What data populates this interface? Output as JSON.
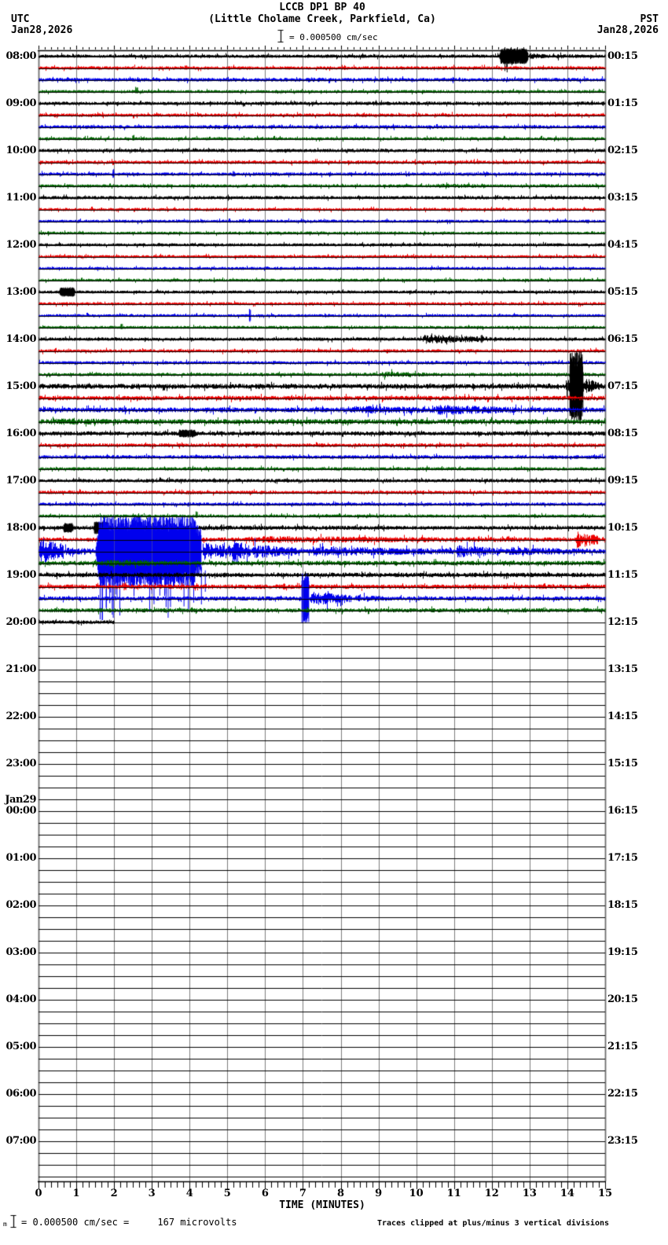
{
  "header": {
    "title": "LCCB DP1 BP 40",
    "subtitle": "(Little Cholame Creek, Parkfield, Ca)",
    "left_timezone": "UTC",
    "left_date": "Jan28,2026",
    "right_timezone": "PST",
    "right_date": "Jan28,2026",
    "scale_label": "= 0.000500 cm/sec"
  },
  "footer": {
    "prefix": "m",
    "scale_note": "= 0.000500 cm/sec =     167 microvolts",
    "clip_note": "Traces clipped at plus/minus 3 vertical divisions"
  },
  "axis": {
    "title": "TIME (MINUTES)",
    "tick_labels": [
      "0",
      "1",
      "2",
      "3",
      "4",
      "5",
      "6",
      "7",
      "8",
      "9",
      "10",
      "11",
      "12",
      "13",
      "14",
      "15"
    ]
  },
  "chart_data": {
    "type": "line",
    "subtype": "seismic heliplot / webicorder",
    "station": "LCCB DP1 BP 40",
    "location": "Little Cholame Creek, Parkfield, Ca",
    "date_utc": "Jan28,2026",
    "minutes_per_line": 15,
    "traces_per_hour_row": 4,
    "trace_colors": [
      "#000000",
      "#ee0000",
      "#0000ee",
      "#006600"
    ],
    "grid_color": "#7d7d7d",
    "amplitude_scale": "1 division = 0.000500 cm/sec = 167 microvolts",
    "clip_limit": "plus/minus 3 vertical divisions",
    "x_range_minutes": [
      0,
      15
    ],
    "minor_tick_seconds": 10,
    "data_ends_at_utc": "~20:02",
    "notable_events": [
      {
        "row_utc": "08:00",
        "trace": "black 08:00-08:15",
        "at_min": 12.2,
        "desc": "clipped black burst with down-spike and short coda"
      },
      {
        "row_utc": "10:00",
        "trace": "blue",
        "at_min": 2.0,
        "desc": "small spike"
      },
      {
        "row_utc": "13:00",
        "trace": "black",
        "at_min": 0.7,
        "desc": "small dense burst"
      },
      {
        "row_utc": "13:00",
        "trace": "blue",
        "at_min": 5.6,
        "desc": "sharp two-sided spike"
      },
      {
        "row_utc": "14:00",
        "trace": "black",
        "at_min": 10.2,
        "desc": "moderate burst decaying to min 12"
      },
      {
        "row_utc": "15:00",
        "trace": "black 15:00-15:15",
        "at_min": 14.1,
        "desc": "large event clipped at ±3 divisions, bleeds across adjacent traces, coda to end"
      },
      {
        "row_utc": "15:00",
        "trace": "blue",
        "at_min": 10.5,
        "desc": "elevated noise band through second half of row"
      },
      {
        "row_utc": "18:00",
        "trace": "blue",
        "at_min": 1.5,
        "desc": "very large clipped earthquake; precursor burst at min 0, clipped mass min 1.5-4.3 with deep tails, long elevated coda across rest of row and 19:00 row"
      },
      {
        "row_utc": "18:00",
        "trace": "red",
        "at_min": 14.3,
        "desc": "red burst near end of row, elevated band from min 5 on"
      },
      {
        "row_utc": "19:00",
        "trace": "blue",
        "at_min": 7.0,
        "desc": "tall narrow spike with short decaying coda"
      },
      {
        "row_utc": "20:00",
        "trace": "black",
        "at_min": 2.0,
        "desc": "recording stops; all later traces flat"
      }
    ],
    "rows": [
      {
        "utc": "08:00",
        "pst": "00:15",
        "traces": [
          {
            "base": 2.2,
            "segs": [
              [
                12.2,
                12.95,
                10,
                1
              ],
              [
                12.95,
                13.6,
                4
              ],
              [
                13.6,
                15,
                3
              ]
            ],
            "spikes": [
              [
                12.38,
                0,
                24
              ],
              [
                12.52,
                0,
                12
              ]
            ]
          },
          {
            "base": 2.2,
            "spikes": [
              [
                3.9,
                4,
                0
              ],
              [
                8.1,
                4,
                0
              ]
            ]
          },
          {
            "base": 2.4,
            "segs": [
              [
                7.0,
                8.2,
                3.2
              ]
            ]
          },
          {
            "base": 2.0,
            "spikes": [
              [
                2.6,
                6,
                0
              ]
            ]
          }
        ]
      },
      {
        "utc": "09:00",
        "pst": "01:15",
        "traces": [
          {
            "base": 2.3
          },
          {
            "base": 2.2
          },
          {
            "base": 2.3,
            "segs": [
              [
                4.4,
                5.4,
                3.4
              ]
            ]
          },
          {
            "base": 2.0,
            "spikes": [
              [
                2.5,
                5,
                0
              ]
            ]
          }
        ]
      },
      {
        "utc": "10:00",
        "pst": "02:15",
        "traces": [
          {
            "base": 2.2
          },
          {
            "base": 2.3
          },
          {
            "base": 2.2,
            "spikes": [
              [
                2.0,
                7,
                5
              ],
              [
                5.15,
                4,
                3
              ]
            ]
          },
          {
            "base": 2.0,
            "segs": [
              [
                10.4,
                12.6,
                3
              ]
            ]
          }
        ]
      },
      {
        "utc": "11:00",
        "pst": "03:15",
        "traces": [
          {
            "base": 2.2
          },
          {
            "base": 2.0
          },
          {
            "base": 2.0
          },
          {
            "base": 1.9
          }
        ]
      },
      {
        "utc": "12:00",
        "pst": "04:15",
        "traces": [
          {
            "base": 2.0
          },
          {
            "base": 2.0
          },
          {
            "base": 1.9
          },
          {
            "base": 1.9
          }
        ]
      },
      {
        "utc": "13:00",
        "pst": "05:15",
        "traces": [
          {
            "base": 2.0,
            "segs": [
              [
                0.55,
                0.95,
                6,
                1
              ]
            ]
          },
          {
            "base": 2.0
          },
          {
            "base": 1.9,
            "spikes": [
              [
                5.62,
                9,
                9
              ]
            ]
          },
          {
            "base": 1.9,
            "spikes": [
              [
                2.2,
                6,
                0
              ]
            ]
          }
        ]
      },
      {
        "utc": "14:00",
        "pst": "06:15",
        "traces": [
          {
            "base": 2.2,
            "segs": [
              [
                10.1,
                11.9,
                6
              ],
              [
                11.9,
                12.5,
                3
              ]
            ],
            "spikes": [
              [
                11.75,
                6,
                5
              ]
            ]
          },
          {
            "base": 2.2
          },
          {
            "base": 2.2
          },
          {
            "base": 2.2,
            "segs": [
              [
                9.0,
                10.6,
                4
              ]
            ]
          }
        ]
      },
      {
        "utc": "15:00",
        "pst": "07:15",
        "traces": [
          {
            "base": 3.2,
            "segs": [
              [
                13.95,
                14.05,
                12
              ],
              [
                14.05,
                14.4,
                45,
                1
              ],
              [
                14.4,
                14.8,
                11
              ],
              [
                14.8,
                15,
                6
              ]
            ]
          },
          {
            "base": 2.9
          },
          {
            "base": 3.2,
            "segs": [
              [
                8,
                13.2,
                5
              ],
              [
                10.4,
                12.7,
                6.5
              ]
            ]
          },
          {
            "base": 3.3,
            "segs": [
              [
                0,
                5,
                4.3
              ]
            ]
          }
        ]
      },
      {
        "utc": "16:00",
        "pst": "08:15",
        "traces": [
          {
            "base": 2.8,
            "segs": [
              [
                3.7,
                4.15,
                5,
                1
              ]
            ]
          },
          {
            "base": 2.4
          },
          {
            "base": 2.4
          },
          {
            "base": 2.2
          }
        ]
      },
      {
        "utc": "17:00",
        "pst": "09:15",
        "traces": [
          {
            "base": 2.3
          },
          {
            "base": 2.3
          },
          {
            "base": 2.2
          },
          {
            "base": 2.0,
            "spikes": [
              [
                4.2,
                7,
                0
              ]
            ]
          }
        ]
      },
      {
        "utc": "18:00",
        "pst": "10:15",
        "traces": [
          {
            "base": 2.5,
            "segs": [
              [
                0.65,
                0.9,
                6,
                1
              ],
              [
                1.45,
                1.85,
                8,
                1
              ],
              [
                1.85,
                15,
                3.2
              ]
            ],
            "spikes": [
              [
                4.87,
                5,
                4
              ]
            ]
          },
          {
            "base": 2.5,
            "segs": [
              [
                5,
                15,
                4.5
              ],
              [
                14.2,
                14.8,
                11
              ]
            ]
          },
          {
            "base": 3,
            "segs": [
              [
                0,
                0.65,
                18
              ],
              [
                0.65,
                1.5,
                6
              ],
              [
                1.5,
                4.3,
                45,
                1
              ],
              [
                4.3,
                5.1,
                12
              ],
              [
                5.1,
                5.6,
                16
              ],
              [
                5.6,
                7,
                9
              ],
              [
                7,
                11,
                6.5
              ],
              [
                11,
                12.2,
                8
              ],
              [
                12.2,
                15,
                5.5
              ]
            ],
            "deep": [
              1.6,
              4.5,
              30,
              45,
              88
            ]
          },
          {
            "base": 2.9,
            "segs": [
              [
                1.5,
                5,
                4.3
              ]
            ]
          }
        ]
      },
      {
        "utc": "19:00",
        "pst": "11:15",
        "traces": [
          {
            "base": 2.9
          },
          {
            "base": 2.9,
            "spikes": [
              [
                2.3,
                6,
                5
              ],
              [
                6.5,
                5,
                4
              ]
            ]
          },
          {
            "base": 2.7,
            "segs": [
              [
                6.95,
                7.15,
                32,
                1
              ],
              [
                7.15,
                8.3,
                9
              ],
              [
                8.3,
                9.6,
                4.5
              ]
            ]
          },
          {
            "base": 2.7
          }
        ]
      },
      {
        "utc": "20:00",
        "pst": "12:15",
        "traces": [
          {
            "base": 2.5,
            "until": 2.0
          },
          {
            "until": 0
          },
          {
            "until": 0
          },
          {
            "until": 0
          }
        ]
      },
      {
        "utc": "21:00",
        "pst": "13:15",
        "traces": [
          {
            "until": 0
          },
          {
            "until": 0
          },
          {
            "until": 0
          },
          {
            "until": 0
          }
        ]
      },
      {
        "utc": "22:00",
        "pst": "14:15",
        "traces": [
          {
            "until": 0
          },
          {
            "until": 0
          },
          {
            "until": 0
          },
          {
            "until": 0
          }
        ]
      },
      {
        "utc": "23:00",
        "pst": "15:15",
        "traces": [
          {
            "until": 0
          },
          {
            "until": 0
          },
          {
            "until": 0
          },
          {
            "until": 0
          }
        ]
      },
      {
        "utc": "00:00",
        "pst": "16:15",
        "day": "Jan29",
        "traces": [
          {
            "until": 0
          },
          {
            "until": 0
          },
          {
            "until": 0
          },
          {
            "until": 0
          }
        ]
      },
      {
        "utc": "01:00",
        "pst": "17:15",
        "traces": [
          {
            "until": 0
          },
          {
            "until": 0
          },
          {
            "until": 0
          },
          {
            "until": 0
          }
        ]
      },
      {
        "utc": "02:00",
        "pst": "18:15",
        "traces": [
          {
            "until": 0
          },
          {
            "until": 0
          },
          {
            "until": 0
          },
          {
            "until": 0
          }
        ]
      },
      {
        "utc": "03:00",
        "pst": "19:15",
        "traces": [
          {
            "until": 0
          },
          {
            "until": 0
          },
          {
            "until": 0
          },
          {
            "until": 0
          }
        ]
      },
      {
        "utc": "04:00",
        "pst": "20:15",
        "traces": [
          {
            "until": 0
          },
          {
            "until": 0
          },
          {
            "until": 0
          },
          {
            "until": 0
          }
        ]
      },
      {
        "utc": "05:00",
        "pst": "21:15",
        "traces": [
          {
            "until": 0
          },
          {
            "until": 0
          },
          {
            "until": 0
          },
          {
            "until": 0
          }
        ]
      },
      {
        "utc": "06:00",
        "pst": "22:15",
        "traces": [
          {
            "until": 0
          },
          {
            "until": 0
          },
          {
            "until": 0
          },
          {
            "until": 0
          }
        ]
      },
      {
        "utc": "07:00",
        "pst": "23:15",
        "traces": [
          {
            "until": 0
          },
          {
            "until": 0
          },
          {
            "until": 0
          },
          {
            "until": 0
          }
        ]
      }
    ]
  }
}
